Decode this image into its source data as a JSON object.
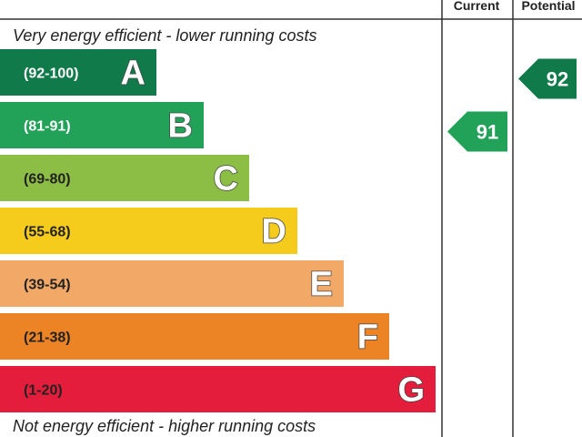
{
  "chart_data": {
    "type": "bar",
    "columns": {
      "current_label": "Current",
      "potential_label": "Potential"
    },
    "top_caption": "Very energy efficient - lower running costs",
    "bottom_caption": "Not energy efficient - higher running costs",
    "bands": [
      {
        "letter": "A",
        "range": "(92-100)",
        "min": 92,
        "max": 100,
        "color": "#117a4b",
        "text_color": "#ffffff"
      },
      {
        "letter": "B",
        "range": "(81-91)",
        "min": 81,
        "max": 91,
        "color": "#22a259",
        "text_color": "#ffffff"
      },
      {
        "letter": "C",
        "range": "(69-80)",
        "min": 69,
        "max": 80,
        "color": "#8cbd45",
        "text_color": "#222222"
      },
      {
        "letter": "D",
        "range": "(55-68)",
        "min": 55,
        "max": 68,
        "color": "#f5cb1c",
        "text_color": "#222222"
      },
      {
        "letter": "E",
        "range": "(39-54)",
        "min": 39,
        "max": 54,
        "color": "#f2a968",
        "text_color": "#222222"
      },
      {
        "letter": "F",
        "range": "(21-38)",
        "min": 21,
        "max": 38,
        "color": "#ec8325",
        "text_color": "#222222"
      },
      {
        "letter": "G",
        "range": "(1-20)",
        "min": 1,
        "max": 20,
        "color": "#e31d3b",
        "text_color": "#222222"
      }
    ],
    "ratings": {
      "current": {
        "value": 91,
        "band": "B",
        "color": "#22a259"
      },
      "potential": {
        "value": 92,
        "band": "A",
        "color": "#117a4b"
      }
    }
  }
}
